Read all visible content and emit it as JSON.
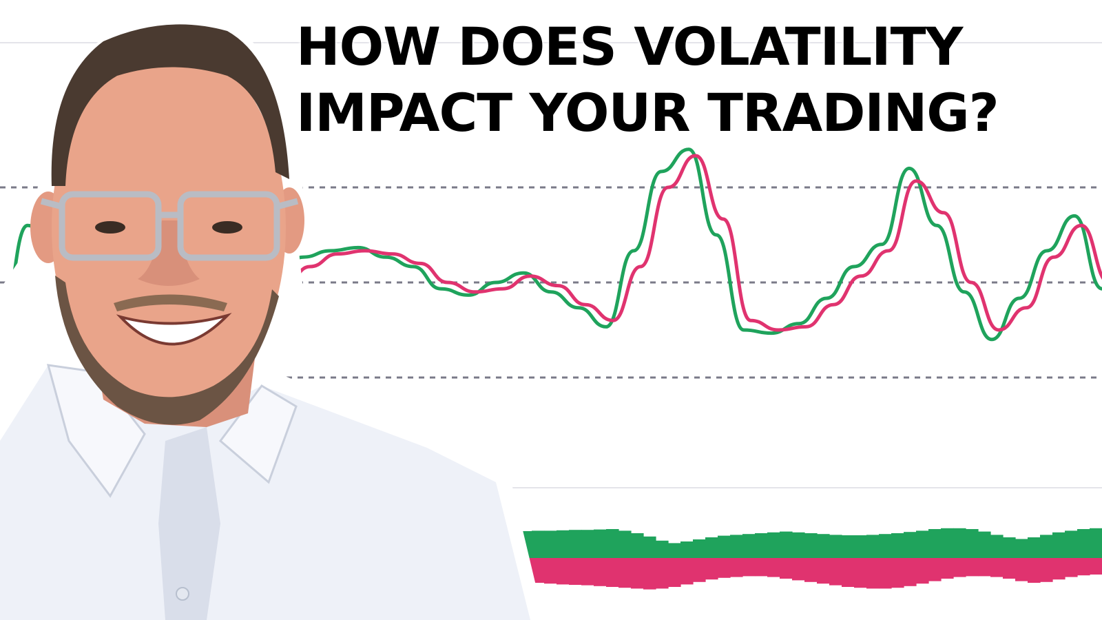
{
  "headline": {
    "line1": "HOW DOES VOLATILITY",
    "line2": "IMPACT YOUR TRADING?"
  },
  "colors": {
    "oscillator_fast": "#1fa35c",
    "oscillator_slow": "#e0336f",
    "histogram_positive": "#1fa35c",
    "histogram_negative": "#e0336f",
    "level_lines": "#7a7a88",
    "shirt": "#eef1f8",
    "skin": "#e9a48a",
    "beard": "#6b5444",
    "hair": "#4a3a30"
  },
  "person": {
    "description_icon": "smiling-man-with-glasses-icon"
  },
  "chart_data": [
    {
      "type": "line",
      "ylim": [
        0,
        100
      ],
      "level_lines": [
        80,
        50,
        20
      ],
      "x": [
        0,
        1,
        2,
        3,
        4,
        5,
        6,
        7,
        8,
        9,
        10,
        11,
        12,
        13,
        14,
        15,
        16,
        17,
        18,
        19,
        20,
        21,
        22,
        23,
        24,
        25,
        26,
        27,
        28,
        29,
        30,
        31,
        32,
        33,
        34,
        35,
        36,
        37,
        38,
        39,
        40
      ],
      "series": [
        {
          "values": [
            35,
            68,
            60,
            45,
            42,
            58,
            55,
            47,
            38,
            40,
            52,
            58,
            60,
            61,
            58,
            55,
            48,
            46,
            50,
            53,
            47,
            42,
            36,
            60,
            85,
            92,
            65,
            35,
            34,
            37,
            45,
            55,
            62,
            86,
            68,
            47,
            32,
            45,
            60,
            71,
            48
          ]
        },
        {
          "values": [
            38,
            62,
            64,
            48,
            44,
            55,
            56,
            49,
            40,
            39,
            48,
            55,
            59,
            60,
            59,
            56,
            50,
            47,
            48,
            52,
            49,
            43,
            38,
            55,
            80,
            90,
            70,
            38,
            35,
            36,
            43,
            52,
            60,
            82,
            72,
            50,
            35,
            42,
            58,
            68,
            50
          ]
        }
      ]
    },
    {
      "type": "bar",
      "categories_count": 80,
      "series": [
        {
          "values": [
            0.6,
            0.62,
            0.64,
            0.65,
            0.66,
            0.66,
            0.67,
            0.68,
            0.68,
            0.69,
            0.7,
            0.66,
            0.6,
            0.52,
            0.42,
            0.36,
            0.4,
            0.45,
            0.5,
            0.54,
            0.56,
            0.58,
            0.6,
            0.62,
            0.64,
            0.62,
            0.6,
            0.58,
            0.56,
            0.55,
            0.55,
            0.56,
            0.58,
            0.6,
            0.63,
            0.66,
            0.7,
            0.72,
            0.72,
            0.7,
            0.64,
            0.56,
            0.5,
            0.46,
            0.5,
            0.56,
            0.62,
            0.66,
            0.7,
            0.72
          ]
        },
        {
          "values": [
            0.52,
            0.54,
            0.56,
            0.58,
            0.6,
            0.62,
            0.64,
            0.65,
            0.66,
            0.68,
            0.7,
            0.72,
            0.74,
            0.76,
            0.74,
            0.7,
            0.64,
            0.58,
            0.52,
            0.48,
            0.46,
            0.44,
            0.44,
            0.46,
            0.5,
            0.54,
            0.58,
            0.62,
            0.66,
            0.7,
            0.72,
            0.74,
            0.74,
            0.72,
            0.68,
            0.62,
            0.56,
            0.5,
            0.46,
            0.44,
            0.44,
            0.46,
            0.5,
            0.56,
            0.6,
            0.58,
            0.52,
            0.46,
            0.42,
            0.4
          ]
        }
      ]
    }
  ]
}
